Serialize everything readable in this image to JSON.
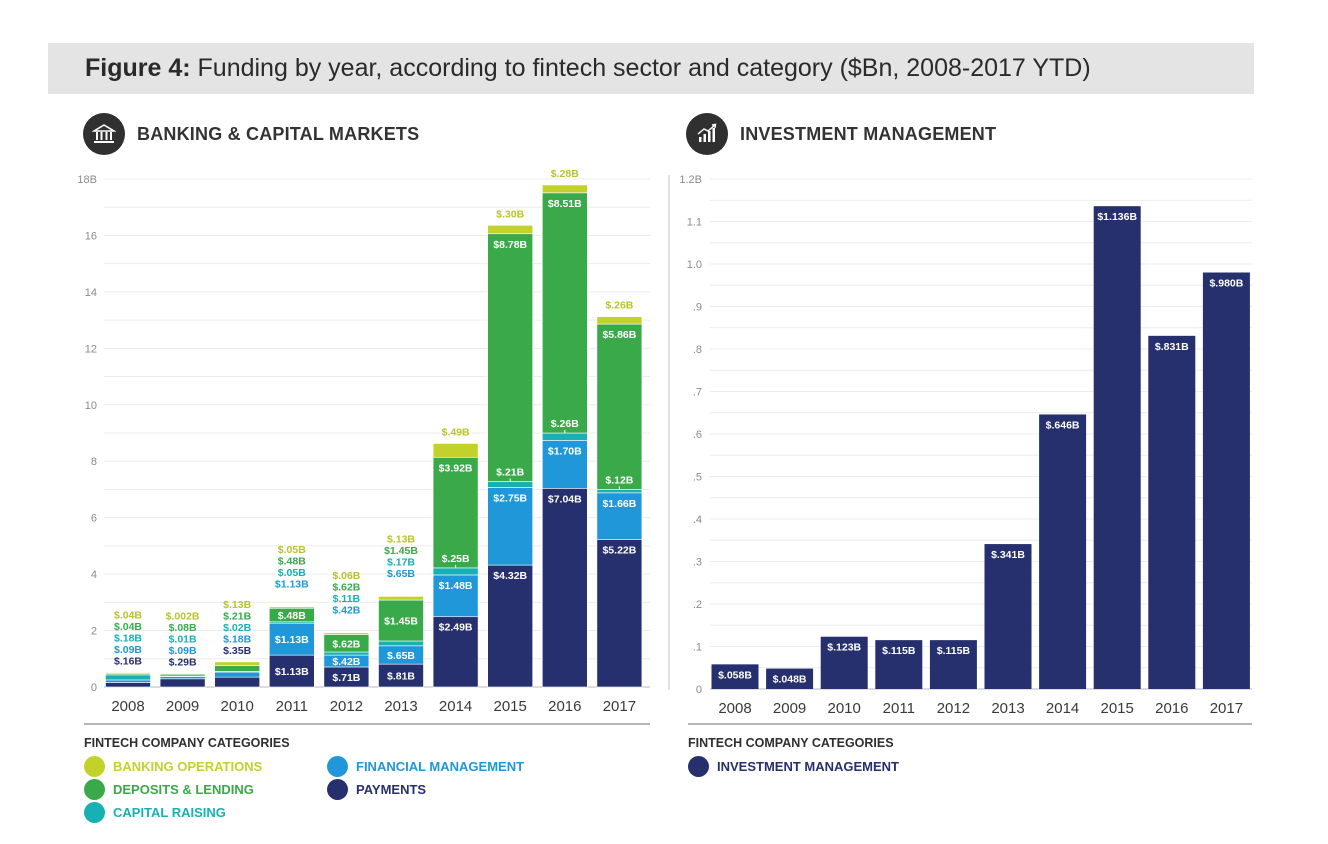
{
  "figure": {
    "prefix": "Figure 4:",
    "title": " Funding by year, according to fintech sector and category ($Bn, 2008-2017 YTD)"
  },
  "colors": {
    "banking_operations": "#c3d22b",
    "deposits_lending": "#3aa94a",
    "capital_raising": "#17b1b5",
    "financial_management": "#1f97d8",
    "payments": "#27306e",
    "investment_management": "#27306e"
  },
  "icons": {
    "left": "bank-icon",
    "right": "growth-chart-icon"
  },
  "legend_left": {
    "title": "FINTECH COMPANY CATEGORIES",
    "items": [
      {
        "label": "BANKING OPERATIONS",
        "color": "#c3d22b"
      },
      {
        "label": "DEPOSITS & LENDING",
        "color": "#3aa94a"
      },
      {
        "label": "CAPITAL RAISING",
        "color": "#17b1b5"
      },
      {
        "label": "FINANCIAL MANAGEMENT",
        "color": "#1f97d8"
      },
      {
        "label": "PAYMENTS",
        "color": "#27306e"
      }
    ]
  },
  "legend_right": {
    "title": "FINTECH COMPANY CATEGORIES",
    "items": [
      {
        "label": "INVESTMENT MANAGEMENT",
        "color": "#27306e"
      }
    ]
  },
  "chart_data": [
    {
      "type": "bar",
      "stacked": true,
      "title": "BANKING & CAPITAL MARKETS",
      "categories": [
        "2008",
        "2009",
        "2010",
        "2011",
        "2012",
        "2013",
        "2014",
        "2015",
        "2016",
        "2017"
      ],
      "ylim": [
        0,
        18
      ],
      "yticks": [
        "0",
        "2",
        "4",
        "6",
        "8",
        "10",
        "12",
        "14",
        "16",
        "18B"
      ],
      "grid": true,
      "series": [
        {
          "name": "PAYMENTS",
          "values": [
            0.16,
            0.29,
            0.35,
            1.13,
            0.71,
            0.81,
            2.49,
            4.32,
            7.04,
            5.22
          ],
          "labels": [
            "$.16B",
            "$.29B",
            "$.35B",
            "$1.13B",
            "$.71B",
            "$.81B",
            "$2.49B",
            "$4.32B",
            "$7.04B",
            "$5.22B"
          ]
        },
        {
          "name": "FINANCIAL MANAGEMENT",
          "values": [
            0.09,
            0.09,
            0.18,
            1.13,
            0.42,
            0.65,
            1.48,
            2.75,
            1.7,
            1.66
          ],
          "labels": [
            "$.09B",
            "$.09B",
            "$.18B",
            "$1.13B",
            "$.42B",
            "$.65B",
            "$1.48B",
            "$2.75B",
            "$1.70B",
            "$1.66B"
          ]
        },
        {
          "name": "CAPITAL RAISING",
          "values": [
            0.18,
            0.01,
            0.02,
            0.05,
            0.11,
            0.17,
            0.25,
            0.21,
            0.26,
            0.12
          ],
          "labels": [
            "$.18B",
            "$.01B",
            "$.02B",
            "$.05B",
            "$.11B",
            "$.17B",
            "$.25B",
            "$.21B",
            "$.26B",
            "$.12B"
          ]
        },
        {
          "name": "DEPOSITS & LENDING",
          "values": [
            0.04,
            0.08,
            0.21,
            0.48,
            0.62,
            1.45,
            3.92,
            8.78,
            8.51,
            5.86
          ],
          "labels": [
            "$.04B",
            "$.08B",
            "$.21B",
            "$.48B",
            "$.62B",
            "$1.45B",
            "$3.92B",
            "$8.78B",
            "$8.51B",
            "$5.86B"
          ]
        },
        {
          "name": "BANKING OPERATIONS",
          "values": [
            0.04,
            0.002,
            0.13,
            0.05,
            0.06,
            0.13,
            0.49,
            0.3,
            0.28,
            0.26
          ],
          "labels": [
            "$.04B",
            "$.002B",
            "$.13B",
            "$.05B",
            "$.06B",
            "$.13B",
            "$.49B",
            "$.30B",
            "$.28B",
            "$.26B"
          ]
        }
      ]
    },
    {
      "type": "bar",
      "title": "INVESTMENT MANAGEMENT",
      "categories": [
        "2008",
        "2009",
        "2010",
        "2011",
        "2012",
        "2013",
        "2014",
        "2015",
        "2016",
        "2017"
      ],
      "ylim": [
        0,
        1.2
      ],
      "yticks": [
        "0",
        ".1",
        ".2",
        ".3",
        ".4",
        ".5",
        ".6",
        ".7",
        ".8",
        ".9",
        "1.0",
        "1.1",
        "1.2B"
      ],
      "grid": true,
      "series": [
        {
          "name": "INVESTMENT MANAGEMENT",
          "values": [
            0.058,
            0.048,
            0.123,
            0.115,
            0.115,
            0.341,
            0.646,
            1.136,
            0.831,
            0.98
          ],
          "labels": [
            "$.058B",
            "$.048B",
            "$.123B",
            "$.115B",
            "$.115B",
            "$.341B",
            "$.646B",
            "$1.136B",
            "$.831B",
            "$.980B"
          ]
        }
      ]
    }
  ]
}
